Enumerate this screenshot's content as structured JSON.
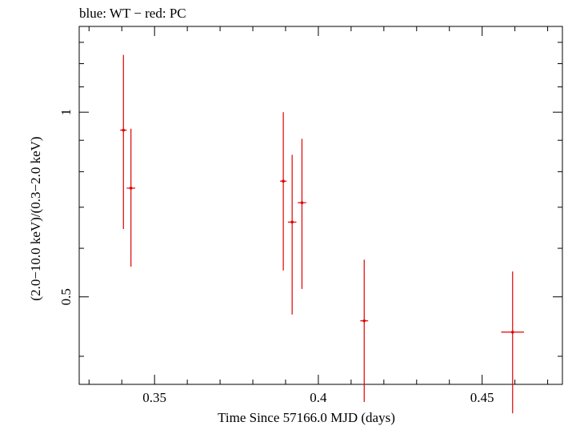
{
  "chart_data": {
    "type": "scatter",
    "title": "blue: WT − red: PC",
    "xlabel": "Time Since 57166.0 MJD (days)",
    "ylabel": "(2.0−10.0 keV)/(0.3−2.0 keV)",
    "xlim": [
      0.327,
      0.4745
    ],
    "ylim": [
      0.36,
      1.38
    ],
    "yscale": "log",
    "x_ticks": [
      {
        "value": 0.35,
        "label": "0.35"
      },
      {
        "value": 0.4,
        "label": "0.4"
      },
      {
        "value": 0.45,
        "label": "0.45"
      }
    ],
    "y_ticks": [
      {
        "value": 0.5,
        "label": "0.5"
      },
      {
        "value": 1.0,
        "label": "1"
      }
    ],
    "series": [
      {
        "name": "PC",
        "color": "#e00000",
        "points": [
          {
            "x": 0.3405,
            "xerr": 0.001,
            "y": 0.935,
            "ylo": 0.645,
            "yhi": 1.24
          },
          {
            "x": 0.3428,
            "xerr": 0.0013,
            "y": 0.752,
            "ylo": 0.56,
            "yhi": 0.94
          },
          {
            "x": 0.3893,
            "xerr": 0.001,
            "y": 0.772,
            "ylo": 0.552,
            "yhi": 1.0
          },
          {
            "x": 0.392,
            "xerr": 0.0013,
            "y": 0.662,
            "ylo": 0.468,
            "yhi": 0.852
          },
          {
            "x": 0.395,
            "xerr": 0.0013,
            "y": 0.712,
            "ylo": 0.515,
            "yhi": 0.905
          },
          {
            "x": 0.414,
            "xerr": 0.0012,
            "y": 0.457,
            "ylo": 0.337,
            "yhi": 0.575
          },
          {
            "x": 0.4593,
            "xerr": 0.0035,
            "y": 0.438,
            "ylo": 0.323,
            "yhi": 0.55
          }
        ]
      }
    ]
  }
}
